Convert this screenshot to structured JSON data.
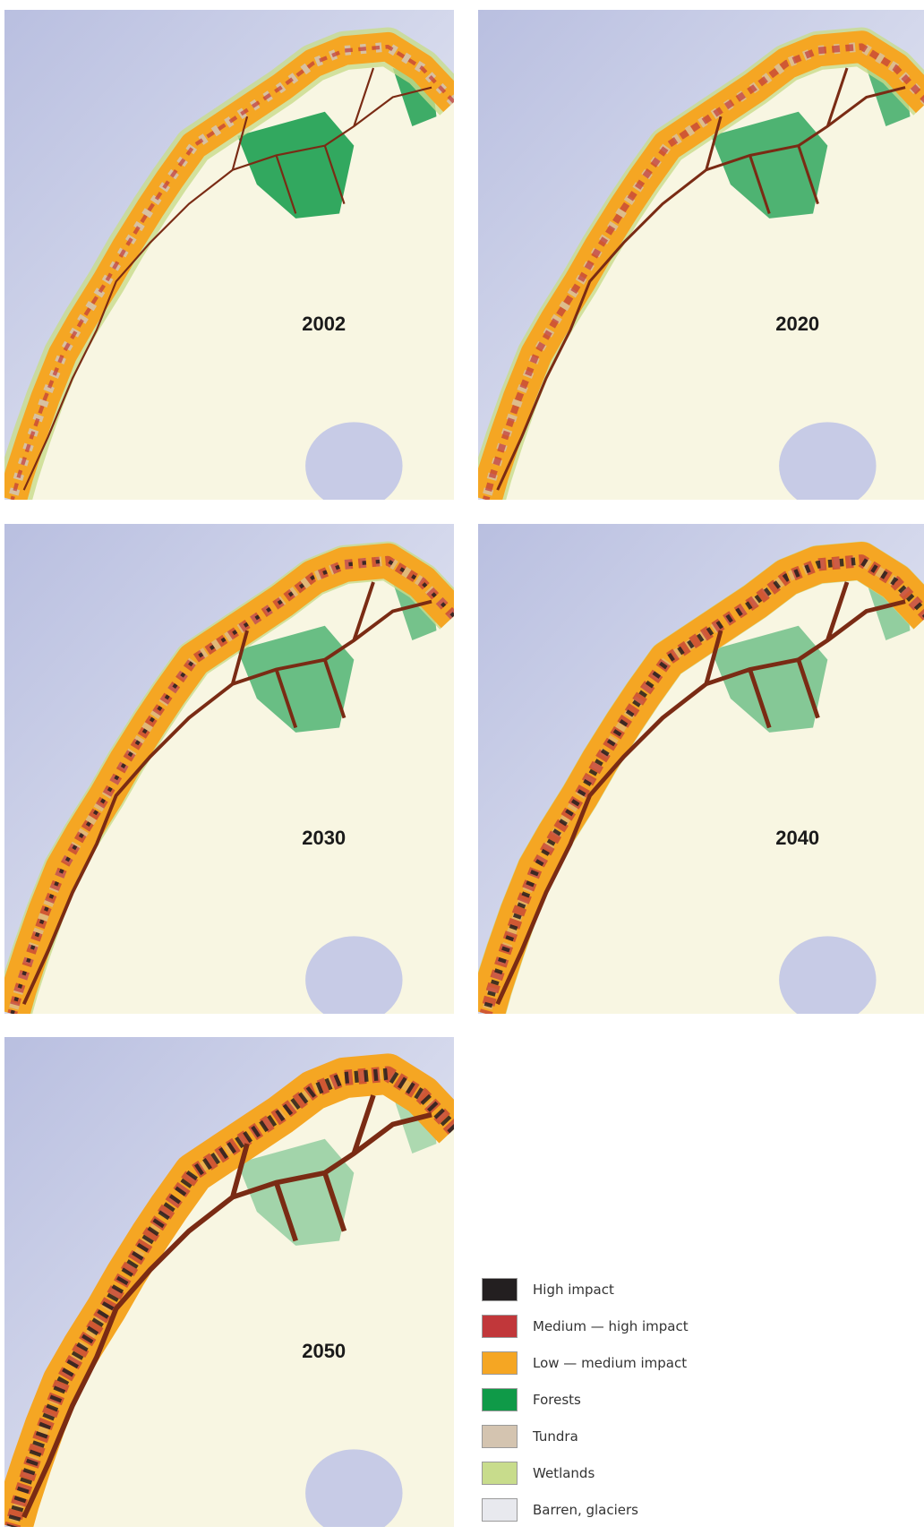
{
  "panels": [
    {
      "year": "2002"
    },
    {
      "year": "2020"
    },
    {
      "year": "2030"
    },
    {
      "year": "2040"
    },
    {
      "year": "2050"
    }
  ],
  "legend": [
    {
      "label": "High impact",
      "color": "#231f20"
    },
    {
      "label": "Medium — high impact",
      "color": "#c1373a"
    },
    {
      "label": "Low — medium impact",
      "color": "#f5a623"
    },
    {
      "label": "Forests",
      "color": "#0f9a48"
    },
    {
      "label": "Tundra",
      "color": "#d4c4b0"
    },
    {
      "label": "Wetlands",
      "color": "#c8dc8c"
    },
    {
      "label": "Barren, glaciers",
      "color": "#e8e9ee"
    }
  ]
}
